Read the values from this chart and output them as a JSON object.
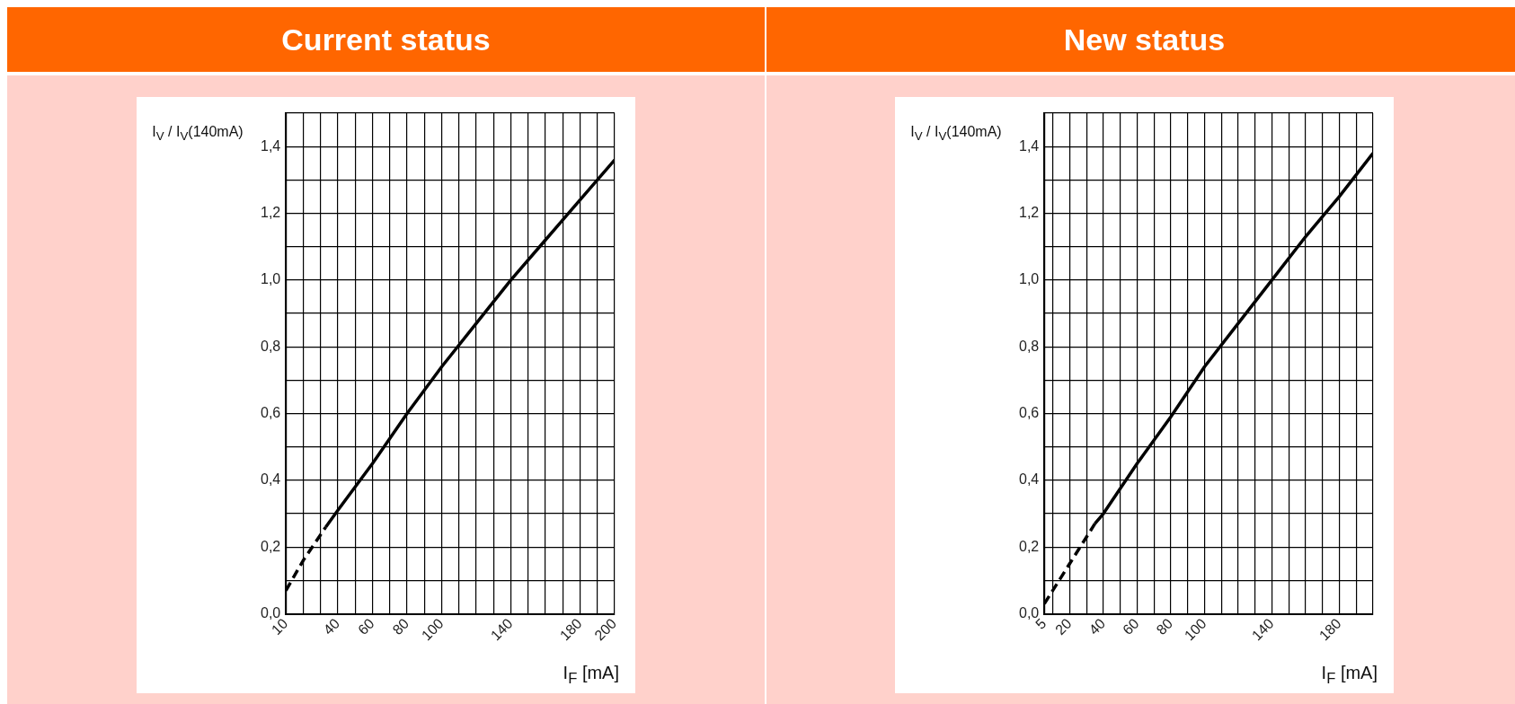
{
  "chart_data": [
    {
      "type": "line",
      "title": "Current status",
      "xlabel": "I$_{F}$ [mA]",
      "ylabel": "I$_{V}$ / I$_{V}$(140mA)",
      "grid": true,
      "marker": "none",
      "xlim": [
        10,
        200
      ],
      "ylim": [
        0,
        1.5
      ],
      "xticks": [
        10,
        {
          "value": 20,
          "label": null
        },
        {
          "value": 30,
          "label": null
        },
        40,
        {
          "value": 50,
          "label": null
        },
        60,
        {
          "value": 70,
          "label": null
        },
        80,
        {
          "value": 90,
          "label": null
        },
        100,
        {
          "value": 110,
          "label": null
        },
        {
          "value": 120,
          "label": null
        },
        {
          "value": 130,
          "label": null
        },
        140,
        {
          "value": 150,
          "label": null
        },
        {
          "value": 160,
          "label": null
        },
        {
          "value": 170,
          "label": null
        },
        180,
        {
          "value": 190,
          "label": null
        },
        200
      ],
      "yticks": [
        {
          "value": 0,
          "label": "0,0"
        },
        {
          "value": 0.1,
          "label": null
        },
        {
          "value": 0.2,
          "label": "0,2"
        },
        {
          "value": 0.3,
          "label": null
        },
        {
          "value": 0.4,
          "label": "0,4"
        },
        {
          "value": 0.5,
          "label": null
        },
        {
          "value": 0.6,
          "label": "0,6"
        },
        {
          "value": 0.7,
          "label": null
        },
        {
          "value": 0.8,
          "label": "0,8"
        },
        {
          "value": 0.9,
          "label": null
        },
        {
          "value": 1.0,
          "label": "1,0"
        },
        {
          "value": 1.1,
          "label": null
        },
        {
          "value": 1.2,
          "label": "1,2"
        },
        {
          "value": 1.3,
          "label": null
        },
        {
          "value": 1.4,
          "label": "1,4"
        },
        {
          "value": 1.5,
          "label": null
        }
      ],
      "series": [
        {
          "color": "#000000",
          "line_style": "dashed",
          "x": [
            10,
            20,
            33
          ],
          "values": [
            0.07,
            0.16,
            0.26
          ]
        },
        {
          "color": "#000000",
          "line_style": "solid",
          "x": [
            33,
            40,
            60,
            80,
            100,
            120,
            140,
            160,
            180,
            200
          ],
          "values": [
            0.26,
            0.31,
            0.45,
            0.6,
            0.74,
            0.87,
            1.0,
            1.12,
            1.24,
            1.36
          ]
        }
      ]
    },
    {
      "type": "line",
      "title": "New status",
      "xlabel": "I$_{F}$ [mA]",
      "ylabel": "I$_{V}$ / I$_{V}$(140mA)",
      "grid": true,
      "marker": "none",
      "xlim": [
        5,
        200
      ],
      "ylim": [
        0,
        1.5
      ],
      "xticks": [
        5,
        {
          "value": 10,
          "label": null
        },
        20,
        {
          "value": 30,
          "label": null
        },
        40,
        {
          "value": 50,
          "label": null
        },
        60,
        {
          "value": 70,
          "label": null
        },
        80,
        {
          "value": 90,
          "label": null
        },
        100,
        {
          "value": 110,
          "label": null
        },
        {
          "value": 120,
          "label": null
        },
        {
          "value": 130,
          "label": null
        },
        140,
        {
          "value": 150,
          "label": null
        },
        {
          "value": 160,
          "label": null
        },
        {
          "value": 170,
          "label": null
        },
        180,
        {
          "value": 190,
          "label": null
        },
        {
          "value": 200,
          "label": null
        }
      ],
      "yticks": [
        {
          "value": 0,
          "label": "0,0"
        },
        {
          "value": 0.1,
          "label": null
        },
        {
          "value": 0.2,
          "label": "0,2"
        },
        {
          "value": 0.3,
          "label": null
        },
        {
          "value": 0.4,
          "label": "0,4"
        },
        {
          "value": 0.5,
          "label": null
        },
        {
          "value": 0.6,
          "label": "0,6"
        },
        {
          "value": 0.7,
          "label": null
        },
        {
          "value": 0.8,
          "label": "0,8"
        },
        {
          "value": 0.9,
          "label": null
        },
        {
          "value": 1.0,
          "label": "1,0"
        },
        {
          "value": 1.1,
          "label": null
        },
        {
          "value": 1.2,
          "label": "1,2"
        },
        {
          "value": 1.3,
          "label": null
        },
        {
          "value": 1.4,
          "label": "1,4"
        },
        {
          "value": 1.5,
          "label": null
        }
      ],
      "series": [
        {
          "color": "#000000",
          "line_style": "dashed",
          "x": [
            5,
            20,
            35
          ],
          "values": [
            0.03,
            0.15,
            0.27
          ]
        },
        {
          "color": "#000000",
          "line_style": "solid",
          "x": [
            35,
            40,
            60,
            80,
            100,
            120,
            140,
            160,
            180,
            200
          ],
          "values": [
            0.27,
            0.3,
            0.45,
            0.59,
            0.74,
            0.87,
            1.0,
            1.13,
            1.25,
            1.38
          ]
        }
      ]
    }
  ]
}
